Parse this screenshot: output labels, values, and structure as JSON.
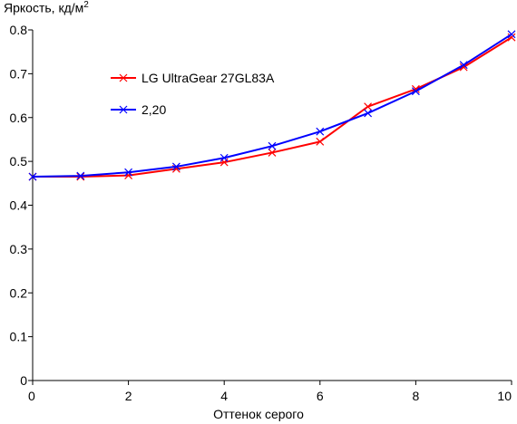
{
  "chart_data": {
    "type": "line",
    "ylabel": "Яркость, кд/м",
    "ylabel_sup": "2",
    "xlabel": "Оттенок серого",
    "xlim": [
      0,
      10
    ],
    "ylim": [
      0,
      0.8
    ],
    "x_ticks": [
      "0",
      "2",
      "4",
      "6",
      "8",
      "10"
    ],
    "y_ticks": [
      "0",
      "0.1",
      "0.2",
      "0.3",
      "0.4",
      "0.5",
      "0.6",
      "0.7",
      "0.8"
    ],
    "grid": false,
    "legend_position": "top-left",
    "x": [
      0,
      1,
      2,
      3,
      4,
      5,
      6,
      7,
      8,
      9,
      10
    ],
    "series": [
      {
        "name": "LG UltraGear 27GL83A",
        "color": "#ff0000",
        "values": [
          0.465,
          0.465,
          0.468,
          0.483,
          0.498,
          0.52,
          0.545,
          0.625,
          0.665,
          0.715,
          0.783
        ]
      },
      {
        "name": "2,20",
        "color": "#0000ff",
        "values": [
          0.465,
          0.467,
          0.475,
          0.488,
          0.508,
          0.535,
          0.568,
          0.61,
          0.66,
          0.72,
          0.79
        ]
      }
    ]
  }
}
